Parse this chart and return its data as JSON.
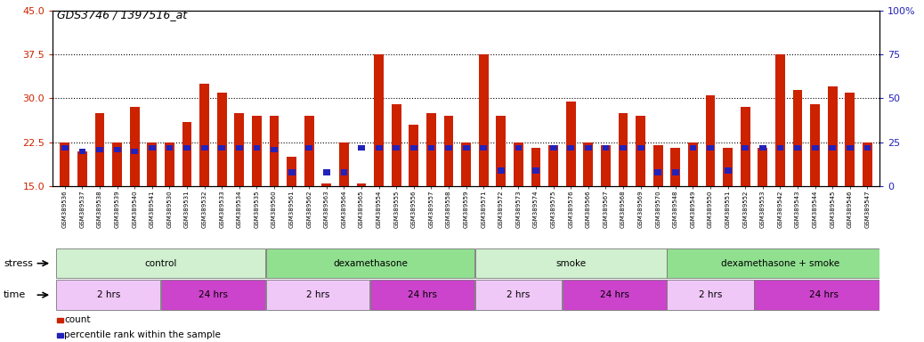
{
  "title": "GDS3746 / 1397516_at",
  "samples": [
    "GSM389536",
    "GSM389537",
    "GSM389538",
    "GSM389539",
    "GSM389540",
    "GSM389541",
    "GSM389530",
    "GSM389531",
    "GSM389532",
    "GSM389533",
    "GSM389534",
    "GSM389535",
    "GSM389560",
    "GSM389561",
    "GSM389562",
    "GSM389563",
    "GSM389564",
    "GSM389565",
    "GSM389554",
    "GSM389555",
    "GSM389556",
    "GSM389557",
    "GSM389558",
    "GSM389559",
    "GSM389571",
    "GSM389572",
    "GSM389573",
    "GSM389574",
    "GSM389575",
    "GSM389576",
    "GSM389566",
    "GSM389567",
    "GSM389568",
    "GSM389569",
    "GSM389570",
    "GSM389548",
    "GSM389549",
    "GSM389550",
    "GSM389551",
    "GSM389552",
    "GSM389553",
    "GSM389542",
    "GSM389543",
    "GSM389544",
    "GSM389545",
    "GSM389546",
    "GSM389547"
  ],
  "counts": [
    22.5,
    21.0,
    27.5,
    22.5,
    28.5,
    22.5,
    22.5,
    26.0,
    32.5,
    31.0,
    27.5,
    27.0,
    27.0,
    20.0,
    27.0,
    15.5,
    22.5,
    15.5,
    37.5,
    29.0,
    25.5,
    27.5,
    27.0,
    22.5,
    37.5,
    27.0,
    22.5,
    21.5,
    22.0,
    29.5,
    22.5,
    22.0,
    27.5,
    27.0,
    22.0,
    21.5,
    22.5,
    30.5,
    21.5,
    28.5,
    21.5,
    37.5,
    31.5,
    29.0,
    32.0,
    31.0,
    22.5
  ],
  "percentiles": [
    22,
    20,
    21,
    21,
    20,
    22,
    22,
    22,
    22,
    22,
    22,
    22,
    21,
    8,
    22,
    8,
    8,
    22,
    22,
    22,
    22,
    22,
    22,
    22,
    22,
    9,
    22,
    9,
    22,
    22,
    22,
    22,
    22,
    22,
    8,
    8,
    22,
    22,
    9,
    22,
    22,
    22,
    22,
    22,
    22,
    22,
    22
  ],
  "ylim_left": [
    15,
    45
  ],
  "ylim_right": [
    0,
    100
  ],
  "yticks_left": [
    15,
    22.5,
    30,
    37.5,
    45
  ],
  "yticks_right": [
    0,
    25,
    50,
    75,
    100
  ],
  "bar_color": "#cc2200",
  "percentile_color": "#2222bb",
  "stress_groups": [
    {
      "label": "control",
      "start": 0,
      "end": 11,
      "color": "#d0f0d0"
    },
    {
      "label": "dexamethasone",
      "start": 12,
      "end": 23,
      "color": "#90e090"
    },
    {
      "label": "smoke",
      "start": 24,
      "end": 34,
      "color": "#d0f0d0"
    },
    {
      "label": "dexamethasone + smoke",
      "start": 35,
      "end": 47,
      "color": "#90e090"
    }
  ],
  "time_groups": [
    {
      "label": "2 hrs",
      "start": 0,
      "end": 5,
      "color": "#f0c8f8"
    },
    {
      "label": "24 hrs",
      "start": 6,
      "end": 11,
      "color": "#cc44cc"
    },
    {
      "label": "2 hrs",
      "start": 12,
      "end": 17,
      "color": "#f0c8f8"
    },
    {
      "label": "24 hrs",
      "start": 18,
      "end": 23,
      "color": "#cc44cc"
    },
    {
      "label": "2 hrs",
      "start": 24,
      "end": 28,
      "color": "#f0c8f8"
    },
    {
      "label": "24 hrs",
      "start": 29,
      "end": 34,
      "color": "#cc44cc"
    },
    {
      "label": "2 hrs",
      "start": 35,
      "end": 39,
      "color": "#f0c8f8"
    },
    {
      "label": "24 hrs",
      "start": 40,
      "end": 47,
      "color": "#cc44cc"
    }
  ],
  "axis_color_left": "#cc2200",
  "axis_color_right": "#2222bb",
  "title_fontsize": 9
}
